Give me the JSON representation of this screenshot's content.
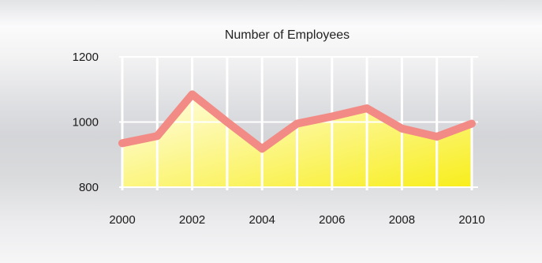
{
  "chart_data": {
    "type": "area",
    "title": "Number of Employees",
    "xlabel": "",
    "ylabel": "",
    "x": [
      2000,
      2001,
      2002,
      2003,
      2004,
      2005,
      2006,
      2007,
      2008,
      2009,
      2010
    ],
    "series": [
      {
        "values": [
          935,
          957,
          1085,
          1000,
          918,
          995,
          1017,
          1042,
          980,
          955,
          995
        ],
        "line_color": "#f28b85",
        "fill_gradient": [
          "#fffde8",
          "#f8ee1c"
        ]
      }
    ],
    "xlim": [
      2000,
      2010
    ],
    "ylim": [
      800,
      1200
    ],
    "x_ticks": [
      "2000",
      "2002",
      "2004",
      "2006",
      "2008",
      "2010"
    ],
    "y_ticks": [
      "800",
      "1000",
      "1200"
    ],
    "grid": true,
    "legend": "none",
    "grid_color": "#ffffff"
  }
}
